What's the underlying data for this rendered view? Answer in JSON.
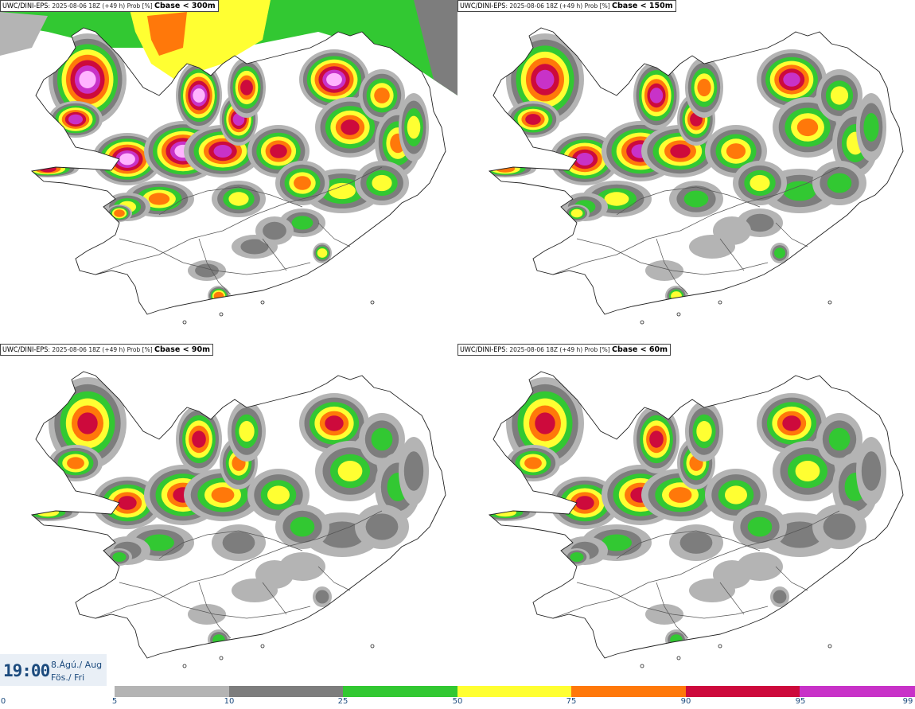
{
  "panels": [
    {
      "source": "UWC/DINI-EPS",
      "meta": ": 2025-08-06 18Z (+49 h) Prob [%] ",
      "threshold": "Cbase < 300m",
      "intensity": 4
    },
    {
      "source": "UWC/DINI-EPS",
      "meta": ": 2025-08-06 18Z (+49 h) Prob [%] ",
      "threshold": "Cbase < 150m",
      "intensity": 3
    },
    {
      "source": "UWC/DINI-EPS",
      "meta": ": 2025-08-06 18Z (+49 h) Prob [%] ",
      "threshold": "Cbase < 90m",
      "intensity": 2
    },
    {
      "source": "UWC/DINI-EPS",
      "meta": ": 2025-08-06 18Z (+49 h) Prob [%] ",
      "threshold": "Cbase < 60m",
      "intensity": 2
    }
  ],
  "valid_time": {
    "time": "19:00",
    "date_line": "8.Ágú./ Aug",
    "day_line": "Fös./ Fri"
  },
  "colorbar": {
    "ticks": [
      "0",
      "5",
      "10",
      "25",
      "50",
      "75",
      "90",
      "95",
      "99"
    ],
    "segments": [
      {
        "color": "#b4b4b4"
      },
      {
        "color": "#7d7d7d"
      },
      {
        "color": "#32c832"
      },
      {
        "color": "#ffff32"
      },
      {
        "color": "#ff780a"
      },
      {
        "color": "#cd0a3c"
      },
      {
        "color": "#c832c8"
      },
      {
        "color": "#ffb4ff"
      }
    ]
  },
  "colors": {
    "grey_light": "#b4b4b4",
    "grey_dark": "#7d7d7d",
    "green": "#32c832",
    "yellow": "#ffff32",
    "orange": "#ff780a",
    "red": "#cd0a3c",
    "magenta": "#c832c8",
    "pink": "#ffb4ff",
    "coast": "#222222"
  }
}
